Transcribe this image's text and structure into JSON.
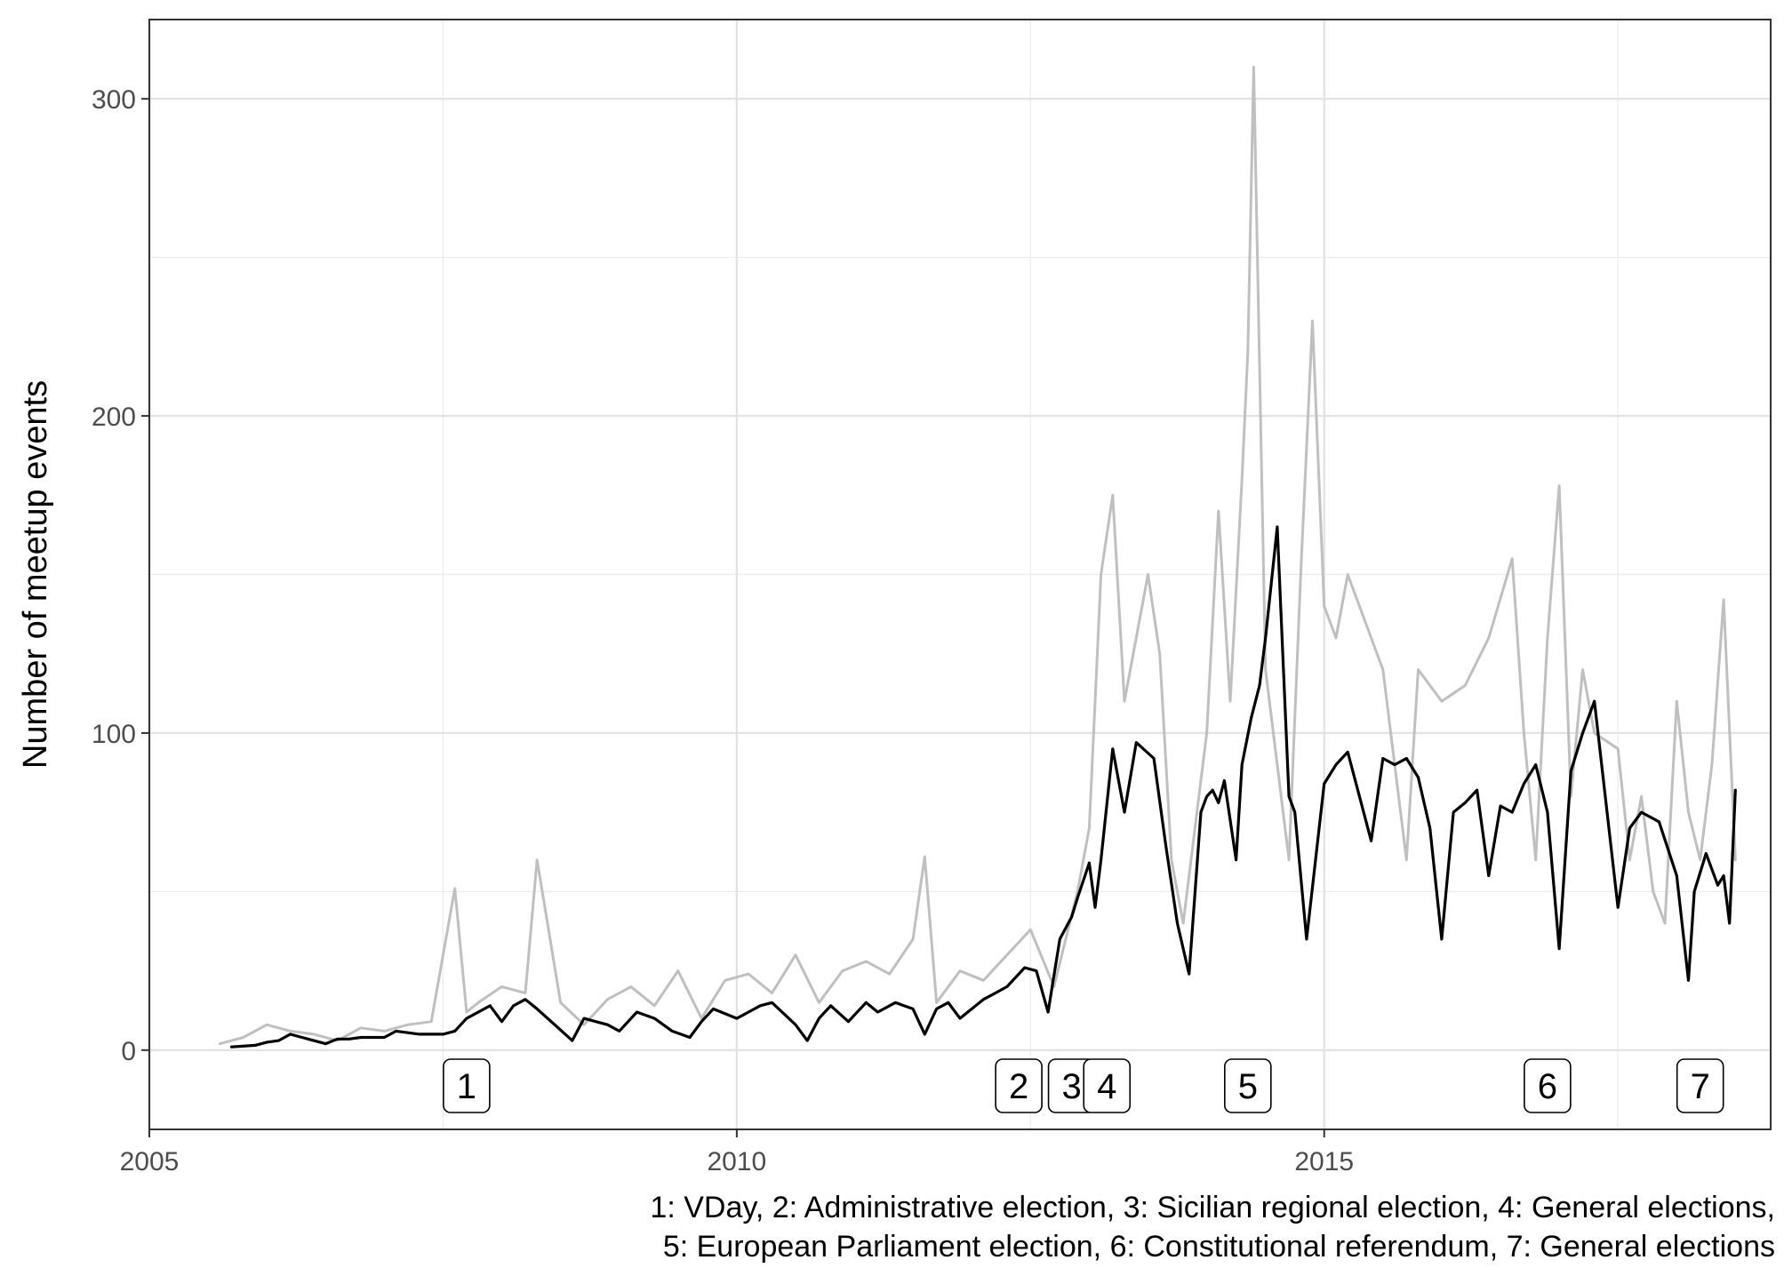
{
  "chart_data": {
    "type": "line",
    "title": "",
    "xlabel": "",
    "ylabel": "Number of meetup events",
    "x_ticks": [
      "2005",
      "2010",
      "2015"
    ],
    "y_ticks": [
      "0",
      "100",
      "200",
      "300"
    ],
    "xlim": [
      2005,
      2018.8
    ],
    "ylim": [
      -25,
      325
    ],
    "grid": true,
    "series": [
      {
        "style": "daily",
        "color": "#bfbfbf",
        "x": [
          2005.6,
          2005.8,
          2006.0,
          2006.2,
          2006.4,
          2006.6,
          2006.8,
          2007.0,
          2007.2,
          2007.4,
          2007.6,
          2007.7,
          2007.8,
          2008.0,
          2008.2,
          2008.3,
          2008.5,
          2008.7,
          2008.9,
          2009.1,
          2009.3,
          2009.5,
          2009.7,
          2009.9,
          2010.1,
          2010.3,
          2010.5,
          2010.7,
          2010.9,
          2011.1,
          2011.3,
          2011.5,
          2011.6,
          2011.7,
          2011.9,
          2012.1,
          2012.3,
          2012.5,
          2012.7,
          2012.9,
          2013.0,
          2013.1,
          2013.2,
          2013.3,
          2013.5,
          2013.6,
          2013.7,
          2013.8,
          2014.0,
          2014.1,
          2014.2,
          2014.3,
          2014.35,
          2014.4,
          2014.5,
          2014.6,
          2014.7,
          2014.8,
          2014.9,
          2015.0,
          2015.1,
          2015.2,
          2015.3,
          2015.5,
          2015.6,
          2015.7,
          2015.8,
          2016.0,
          2016.2,
          2016.4,
          2016.6,
          2016.7,
          2016.8,
          2016.9,
          2017.0,
          2017.1,
          2017.2,
          2017.3,
          2017.5,
          2017.6,
          2017.7,
          2017.8,
          2017.9,
          2018.0,
          2018.1,
          2018.2,
          2018.3,
          2018.4,
          2018.5
        ],
        "values": [
          2,
          4,
          8,
          6,
          5,
          3,
          7,
          6,
          8,
          9,
          51,
          12,
          15,
          20,
          18,
          60,
          15,
          8,
          16,
          20,
          14,
          25,
          10,
          22,
          24,
          18,
          30,
          15,
          25,
          28,
          24,
          35,
          61,
          15,
          25,
          22,
          30,
          38,
          20,
          50,
          70,
          150,
          175,
          110,
          150,
          125,
          60,
          40,
          100,
          170,
          110,
          180,
          220,
          310,
          120,
          90,
          60,
          150,
          230,
          140,
          130,
          150,
          140,
          120,
          90,
          60,
          120,
          110,
          115,
          130,
          155,
          100,
          60,
          130,
          178,
          80,
          120,
          100,
          95,
          60,
          80,
          50,
          40,
          110,
          75,
          60,
          90,
          142,
          60
        ]
      },
      {
        "style": "smoothed",
        "color": "#000000",
        "x": [
          2005.7,
          2005.9,
          2006.0,
          2006.1,
          2006.2,
          2006.3,
          2006.4,
          2006.5,
          2006.6,
          2006.7,
          2006.8,
          2007.0,
          2007.1,
          2007.3,
          2007.5,
          2007.6,
          2007.7,
          2007.8,
          2007.9,
          2008.0,
          2008.1,
          2008.2,
          2008.3,
          2008.45,
          2008.6,
          2008.7,
          2008.8,
          2008.9,
          2009.0,
          2009.15,
          2009.3,
          2009.45,
          2009.6,
          2009.7,
          2009.8,
          2010.0,
          2010.1,
          2010.2,
          2010.3,
          2010.5,
          2010.6,
          2010.7,
          2010.8,
          2010.95,
          2011.1,
          2011.2,
          2011.35,
          2011.5,
          2011.6,
          2011.7,
          2011.8,
          2011.9,
          2012.0,
          2012.1,
          2012.2,
          2012.3,
          2012.45,
          2012.55,
          2012.65,
          2012.75,
          2012.85,
          2012.9,
          2013.0,
          2013.05,
          2013.1,
          2013.2,
          2013.3,
          2013.4,
          2013.55,
          2013.65,
          2013.75,
          2013.85,
          2013.95,
          2014.0,
          2014.05,
          2014.1,
          2014.15,
          2014.25,
          2014.3,
          2014.38,
          2014.45,
          2014.5,
          2014.6,
          2014.7,
          2014.75,
          2014.85,
          2015.0,
          2015.1,
          2015.2,
          2015.4,
          2015.5,
          2015.6,
          2015.7,
          2015.8,
          2015.9,
          2016.0,
          2016.1,
          2016.2,
          2016.3,
          2016.4,
          2016.5,
          2016.6,
          2016.7,
          2016.8,
          2016.9,
          2017.0,
          2017.1,
          2017.2,
          2017.3,
          2017.5,
          2017.6,
          2017.7,
          2017.85,
          2018.0,
          2018.1,
          2018.15,
          2018.25,
          2018.35,
          2018.4,
          2018.45,
          2018.5
        ],
        "values": [
          1,
          1.5,
          2.5,
          3,
          5,
          4,
          3,
          2,
          3.5,
          3.5,
          4,
          4,
          6,
          5,
          5,
          6,
          10,
          12,
          14,
          9,
          14,
          16,
          13,
          8,
          3,
          10,
          9,
          8,
          6,
          12,
          10,
          6,
          4,
          9,
          13,
          10,
          12,
          14,
          15,
          8,
          3,
          10,
          14,
          9,
          15,
          12,
          15,
          13,
          5,
          13,
          15,
          10,
          13,
          16,
          18,
          20,
          26,
          25,
          12,
          35,
          42,
          48,
          59,
          45,
          60,
          95,
          75,
          97,
          92,
          65,
          40,
          24,
          75,
          80,
          82,
          78,
          85,
          60,
          90,
          105,
          115,
          130,
          165,
          80,
          75,
          35,
          84,
          90,
          94,
          66,
          92,
          90,
          92,
          86,
          70,
          35,
          75,
          78,
          82,
          55,
          77,
          75,
          84,
          90,
          75,
          32,
          88,
          100,
          110,
          45,
          70,
          75,
          72,
          55,
          22,
          50,
          62,
          52,
          55,
          40,
          82
        ]
      }
    ],
    "annotations": [
      {
        "label": "1",
        "x": 2007.7
      },
      {
        "label": "2",
        "x": 2012.4
      },
      {
        "label": "3",
        "x": 2012.85
      },
      {
        "label": "4",
        "x": 2013.15
      },
      {
        "label": "5",
        "x": 2014.35
      },
      {
        "label": "6",
        "x": 2016.9
      },
      {
        "label": "7",
        "x": 2018.2
      }
    ],
    "caption_lines": [
      "1: VDay, 2: Administrative election, 3: Sicilian regional election, 4: General elections,",
      "5: European Parliament election, 6: Constitutional referendum, 7: General elections"
    ]
  }
}
